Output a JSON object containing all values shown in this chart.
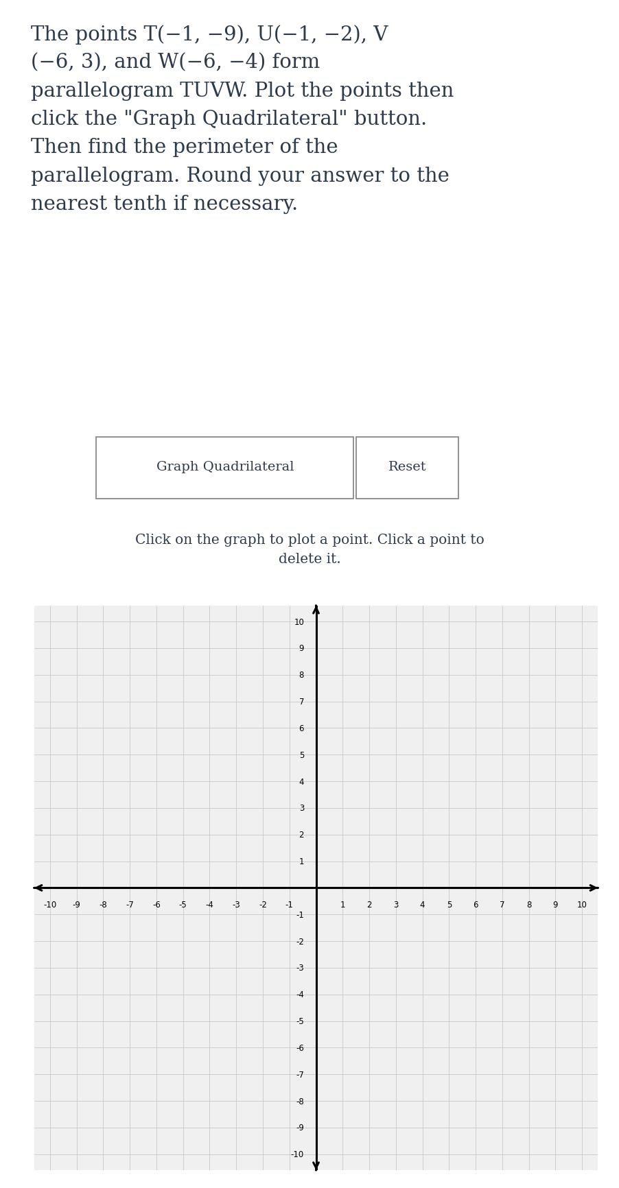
{
  "background_color": "#ffffff",
  "text_color": "#2d3a4a",
  "title_lines": [
    "The points T(−1, −9), U(−1, −2), V",
    "(−6, 3), and W(−6, −4) form",
    "parallelogram TUVW. Plot the points then",
    "click the \"Graph Quadrilateral\" button.",
    "Then find the perimeter of the",
    "parallelogram. Round your answer to the",
    "nearest tenth if necessary."
  ],
  "btn1_text": "Graph Quadrilateral",
  "btn2_text": "Reset",
  "instruction_text": "Click on the graph to plot a point. Click a point to\ndelete it.",
  "axis_min": -10,
  "axis_max": 10,
  "grid_color": "#c8c8c8",
  "grid_bg": "#f0f0f0",
  "axis_color": "#000000",
  "axis_linewidth": 2.2,
  "tick_labels_pos": [
    -10,
    -9,
    -8,
    -7,
    -6,
    -5,
    -4,
    -3,
    -2,
    -1,
    1,
    2,
    3,
    4,
    5,
    6,
    7,
    8,
    9,
    10
  ],
  "tick_label_fontsize": 8.5,
  "title_fontsize": 21,
  "btn_fontsize": 14,
  "instruction_fontsize": 14.5
}
